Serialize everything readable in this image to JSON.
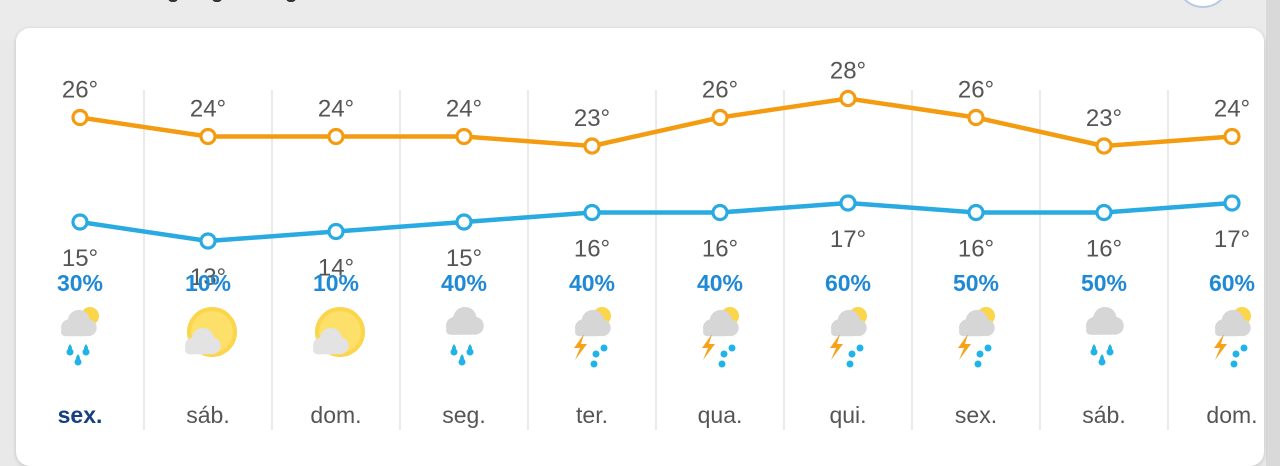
{
  "chart_data": {
    "type": "line",
    "x": [
      "sex.",
      "sáb.",
      "dom.",
      "seg.",
      "ter.",
      "qua.",
      "qui.",
      "sex.",
      "sáb.",
      "dom."
    ],
    "active_index": 0,
    "series": [
      {
        "key": "max",
        "values": [
          26,
          24,
          24,
          24,
          23,
          26,
          28,
          26,
          23,
          24
        ],
        "color": "#f39c12"
      },
      {
        "key": "min",
        "values": [
          15,
          13,
          14,
          15,
          16,
          16,
          17,
          16,
          16,
          17
        ],
        "color": "#29abe2"
      }
    ],
    "temp_labels": {
      "max": [
        "26°",
        "24°",
        "24°",
        "24°",
        "23°",
        "26°",
        "28°",
        "26°",
        "23°",
        "24°"
      ],
      "min": [
        "15°",
        "13°",
        "14°",
        "15°",
        "16°",
        "16°",
        "17°",
        "16°",
        "16°",
        "17°"
      ]
    },
    "precipitation": [
      "30%",
      "10%",
      "10%",
      "40%",
      "40%",
      "40%",
      "60%",
      "50%",
      "50%",
      "60%"
    ],
    "icons": [
      "partly-cloudy-rain-icon",
      "sun-cloud-icon",
      "sun-cloud-icon",
      "cloud-rain-icon",
      "thunderstorm-rain-icon",
      "thunderstorm-rain-icon",
      "thunderstorm-rain-icon",
      "thunderstorm-rain-icon",
      "cloud-rain-icon",
      "thunderstorm-rain-icon"
    ],
    "colors": {
      "max_line": "#f39c12",
      "min_line": "#29abe2",
      "precip_text": "#1e8ad6",
      "active_day": "#163f7d"
    }
  }
}
